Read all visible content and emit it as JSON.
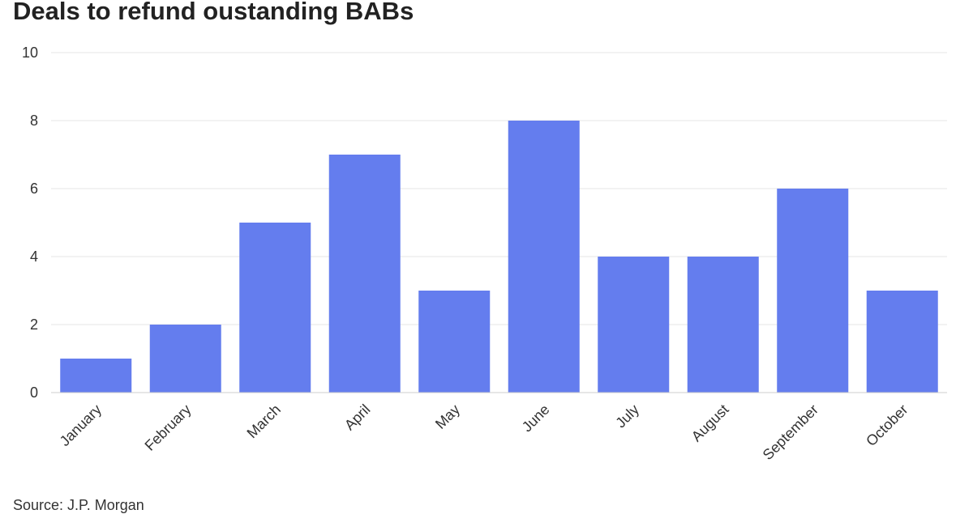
{
  "header": {
    "title": "Deals to refund oustanding BABs"
  },
  "footer": {
    "source": "Source: J.P. Morgan"
  },
  "chart_data": {
    "type": "bar",
    "title": "Deals to refund oustanding BABs",
    "xlabel": "",
    "ylabel": "",
    "categories": [
      "January",
      "February",
      "March",
      "April",
      "May",
      "June",
      "July",
      "August",
      "September",
      "October"
    ],
    "values": [
      1,
      2,
      5,
      7,
      3,
      8,
      4,
      4,
      6,
      3
    ],
    "ylim": [
      0,
      10
    ],
    "yticks": [
      0,
      2,
      4,
      6,
      8,
      10
    ],
    "grid": true,
    "legend": "none",
    "bar_color": "#647DEE",
    "grid_color": "#E6E6E6"
  }
}
